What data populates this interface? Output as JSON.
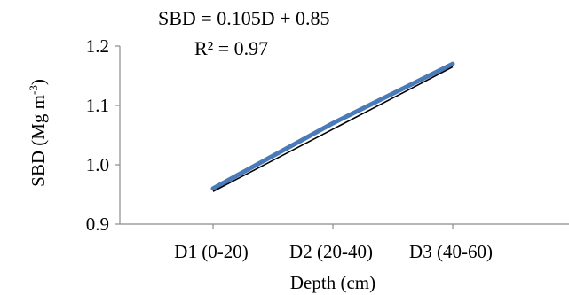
{
  "chart_data": {
    "type": "line",
    "categories": [
      "D1 (0-20)",
      "D2 (20-40)",
      "D3 (40-60)"
    ],
    "series": [
      {
        "values": [
          0.96,
          1.07,
          1.17
        ],
        "color": "#4a7ab8"
      }
    ],
    "trendline": {
      "values": [
        0.955,
        1.06,
        1.165
      ],
      "color": "#000000"
    },
    "annotations": {
      "equation": "SBD = 0.105D + 0.85",
      "r_squared": "R² = 0.97"
    },
    "xlabel": "Depth (cm)",
    "ylabel": {
      "main": "SBD (Mg m",
      "superscript": "-3",
      "close": ")"
    },
    "yticks": [
      "0.9",
      "1.0",
      "1.1",
      "1.2"
    ],
    "ylim": [
      0.9,
      1.2
    ],
    "grid": false,
    "legend": "none"
  }
}
